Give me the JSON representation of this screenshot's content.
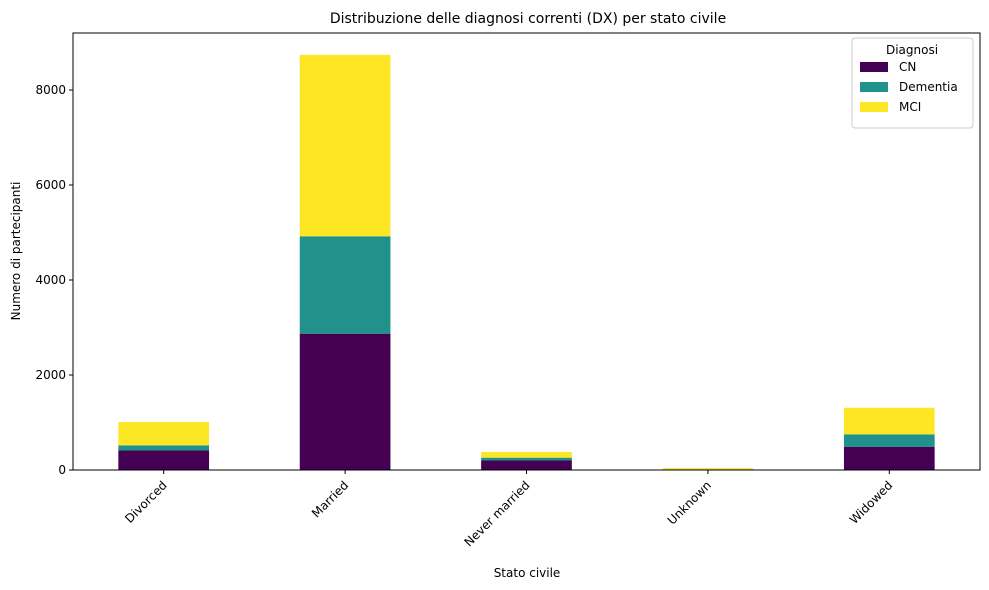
{
  "chart_data": {
    "type": "bar",
    "stacked": true,
    "title": "Distribuzione delle diagnosi correnti (DX) per stato civile",
    "xlabel": "Stato civile",
    "ylabel": "Numero di partecipanti",
    "categories": [
      "Divorced",
      "Married",
      "Never married",
      "Unknown",
      "Widowed"
    ],
    "series": [
      {
        "name": "CN",
        "color": "#440154",
        "values": [
          410,
          2870,
          200,
          10,
          490
        ]
      },
      {
        "name": "Dementia",
        "color": "#21918c",
        "values": [
          110,
          2050,
          60,
          5,
          260
        ]
      },
      {
        "name": "MCI",
        "color": "#fde725",
        "values": [
          490,
          3820,
          120,
          25,
          560
        ]
      }
    ],
    "ylim": [
      0,
      9200
    ],
    "yticks": [
      0,
      2000,
      4000,
      6000,
      8000
    ],
    "legend": {
      "title": "Diagnosi",
      "placement": "top-right"
    },
    "grid": false
  }
}
